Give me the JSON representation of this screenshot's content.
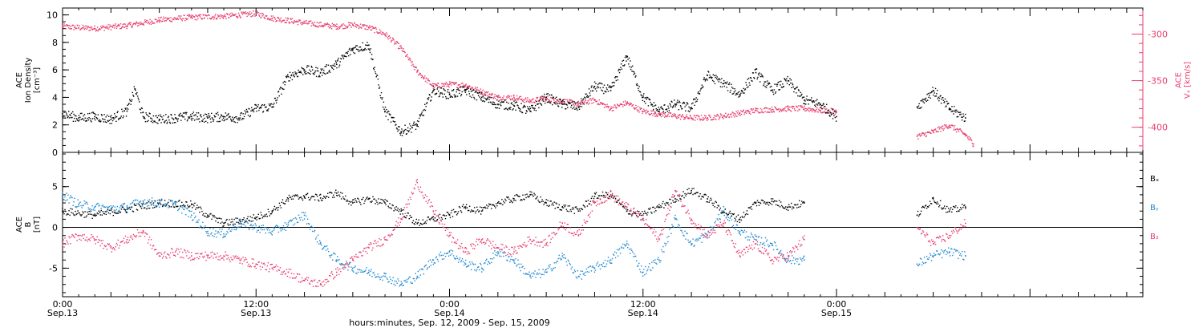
{
  "colors": {
    "black": "#000000",
    "pink": "#e83d6e",
    "blue": "#1e88d0"
  },
  "chart_data": [
    {
      "type": "scatter",
      "panel": "top",
      "ylabel_lines": [
        "ACE",
        "Ion Density",
        "[cm⁻³]"
      ],
      "ylabel_right_lines": [
        "ACE",
        "Vₓ [km/s]"
      ],
      "x_unit": "hours since Sep.13 00:00",
      "xlim": [
        0,
        67
      ],
      "ylim": [
        0,
        10.5
      ],
      "yticks": [
        0,
        2,
        4,
        6,
        8,
        10
      ],
      "y2lim": [
        -427,
        -272
      ],
      "y2ticks": [
        -300,
        -350,
        -400
      ],
      "series": [
        {
          "name": "Ion Density",
          "color": "#000000",
          "axis": "left",
          "points": [
            [
              0,
              2.8
            ],
            [
              1,
              2.5
            ],
            [
              2,
              2.6
            ],
            [
              3,
              2.4
            ],
            [
              4,
              3.0
            ],
            [
              4.5,
              4.6
            ],
            [
              5,
              2.6
            ],
            [
              6,
              2.4
            ],
            [
              7,
              2.5
            ],
            [
              8,
              2.6
            ],
            [
              9,
              2.5
            ],
            [
              10,
              2.6
            ],
            [
              11,
              2.5
            ],
            [
              12,
              3.2
            ],
            [
              13,
              3.3
            ],
            [
              14,
              5.5
            ],
            [
              15,
              6.0
            ],
            [
              16,
              5.8
            ],
            [
              17,
              6.4
            ],
            [
              18,
              7.5
            ],
            [
              19,
              7.8
            ],
            [
              20,
              3.0
            ],
            [
              21,
              1.5
            ],
            [
              22,
              2.0
            ],
            [
              23,
              4.5
            ],
            [
              24,
              4.2
            ],
            [
              25,
              4.5
            ],
            [
              26,
              4.0
            ],
            [
              27,
              3.5
            ],
            [
              28,
              3.4
            ],
            [
              29,
              3.0
            ],
            [
              30,
              4.0
            ],
            [
              31,
              3.5
            ],
            [
              32,
              3.3
            ],
            [
              33,
              4.8
            ],
            [
              34,
              4.5
            ],
            [
              35,
              7.0
            ],
            [
              36,
              4.0
            ],
            [
              37,
              3.0
            ],
            [
              38,
              3.5
            ],
            [
              39,
              3.2
            ],
            [
              40,
              5.6
            ],
            [
              41,
              5.0
            ],
            [
              42,
              4.2
            ],
            [
              43,
              5.8
            ],
            [
              44,
              4.5
            ],
            [
              45,
              5.2
            ],
            [
              46,
              3.8
            ],
            [
              47,
              3.5
            ],
            [
              48,
              2.6
            ],
            [
              53,
              3.3
            ],
            [
              54,
              4.5
            ],
            [
              55,
              3.2
            ],
            [
              56,
              2.5
            ]
          ]
        },
        {
          "name": "Vx",
          "color": "#e83d6e",
          "axis": "right",
          "points": [
            [
              0,
              -292
            ],
            [
              2,
              -294
            ],
            [
              4,
              -291
            ],
            [
              6,
              -285
            ],
            [
              8,
              -282
            ],
            [
              10,
              -281
            ],
            [
              12,
              -278
            ],
            [
              13,
              -283
            ],
            [
              15,
              -288
            ],
            [
              17,
              -292
            ],
            [
              18,
              -290
            ],
            [
              19,
              -293
            ],
            [
              20,
              -300
            ],
            [
              21,
              -315
            ],
            [
              22,
              -340
            ],
            [
              23,
              -356
            ],
            [
              24,
              -354
            ],
            [
              25,
              -355
            ],
            [
              26,
              -362
            ],
            [
              27,
              -368
            ],
            [
              28,
              -368
            ],
            [
              29,
              -372
            ],
            [
              30,
              -369
            ],
            [
              31,
              -372
            ],
            [
              32,
              -375
            ],
            [
              33,
              -371
            ],
            [
              34,
              -380
            ],
            [
              35,
              -374
            ],
            [
              36,
              -383
            ],
            [
              37,
              -386
            ],
            [
              38,
              -388
            ],
            [
              39,
              -390
            ],
            [
              40,
              -390
            ],
            [
              41,
              -388
            ],
            [
              42,
              -385
            ],
            [
              43,
              -382
            ],
            [
              44,
              -381
            ],
            [
              45,
              -380
            ],
            [
              46,
              -380
            ],
            [
              47,
              -382
            ],
            [
              48,
              -383
            ],
            [
              53,
              -410
            ],
            [
              54,
              -405
            ],
            [
              55,
              -398
            ],
            [
              56,
              -408
            ],
            [
              56.5,
              -418
            ]
          ]
        }
      ]
    },
    {
      "type": "scatter",
      "panel": "bottom",
      "ylabel_lines": [
        "ACE",
        "B",
        "[nT]"
      ],
      "x_unit": "hours since Sep.13 00:00",
      "xlim": [
        0,
        67
      ],
      "ylim": [
        -8.5,
        9.2
      ],
      "yticks": [
        -5,
        0,
        5
      ],
      "zero_line": true,
      "x_tick_labels": [
        {
          "hour": 0,
          "line1": "0:00",
          "line2": "Sep.13"
        },
        {
          "hour": 12,
          "line1": "12:00",
          "line2": "Sep.13"
        },
        {
          "hour": 24,
          "line1": "0:00",
          "line2": "Sep.14"
        },
        {
          "hour": 36,
          "line1": "12:00",
          "line2": "Sep.14"
        },
        {
          "hour": 48,
          "line1": "0:00",
          "line2": "Sep.15"
        }
      ],
      "xlabel": "hours:minutes, Sep. 12, 2009 - Sep. 15, 2009",
      "legend_position": "right",
      "series": [
        {
          "name": "Bₓ",
          "color": "#000000",
          "points": [
            [
              0,
              2.0
            ],
            [
              2,
              1.5
            ],
            [
              4,
              2.2
            ],
            [
              6,
              3.0
            ],
            [
              8,
              2.8
            ],
            [
              9,
              1.5
            ],
            [
              10,
              0.5
            ],
            [
              11,
              0.8
            ],
            [
              12,
              1.2
            ],
            [
              13,
              2.0
            ],
            [
              14,
              3.5
            ],
            [
              15,
              3.8
            ],
            [
              16,
              3.6
            ],
            [
              17,
              4.2
            ],
            [
              18,
              3.0
            ],
            [
              19,
              3.5
            ],
            [
              20,
              3.0
            ],
            [
              21,
              2.0
            ],
            [
              22,
              0.5
            ],
            [
              23,
              1.0
            ],
            [
              24,
              1.5
            ],
            [
              25,
              2.5
            ],
            [
              26,
              2.0
            ],
            [
              27,
              3.0
            ],
            [
              28,
              3.5
            ],
            [
              29,
              4.0
            ],
            [
              30,
              3.0
            ],
            [
              31,
              2.5
            ],
            [
              32,
              2.0
            ],
            [
              33,
              3.8
            ],
            [
              34,
              4.0
            ],
            [
              35,
              2.0
            ],
            [
              36,
              1.5
            ],
            [
              37,
              2.5
            ],
            [
              38,
              3.5
            ],
            [
              39,
              4.5
            ],
            [
              40,
              3.5
            ],
            [
              41,
              2.0
            ],
            [
              42,
              1.0
            ],
            [
              43,
              3.0
            ],
            [
              44,
              3.2
            ],
            [
              45,
              2.5
            ],
            [
              46,
              3.0
            ],
            [
              53,
              1.5
            ],
            [
              54,
              3.5
            ],
            [
              55,
              2.0
            ],
            [
              56,
              2.5
            ]
          ]
        },
        {
          "name": "Bᵧ",
          "color": "#1e88d0",
          "points": [
            [
              0,
              4.0
            ],
            [
              1,
              2.8
            ],
            [
              2,
              2.5
            ],
            [
              3,
              2.3
            ],
            [
              4,
              2.5
            ],
            [
              5,
              3.2
            ],
            [
              6,
              3.0
            ],
            [
              7,
              2.8
            ],
            [
              8,
              1.5
            ],
            [
              9,
              -0.5
            ],
            [
              10,
              -0.8
            ],
            [
              11,
              0.5
            ],
            [
              12,
              0.0
            ],
            [
              13,
              -0.5
            ],
            [
              14,
              0.3
            ],
            [
              15,
              1.5
            ],
            [
              16,
              -2.0
            ],
            [
              17,
              -4.0
            ],
            [
              18,
              -5.0
            ],
            [
              19,
              -5.5
            ],
            [
              20,
              -6.0
            ],
            [
              21,
              -7.0
            ],
            [
              22,
              -6.0
            ],
            [
              23,
              -4.0
            ],
            [
              24,
              -3.0
            ],
            [
              25,
              -4.5
            ],
            [
              26,
              -5.0
            ],
            [
              27,
              -3.0
            ],
            [
              28,
              -4.0
            ],
            [
              29,
              -6.0
            ],
            [
              30,
              -5.5
            ],
            [
              31,
              -3.5
            ],
            [
              32,
              -6.0
            ],
            [
              33,
              -5.0
            ],
            [
              34,
              -4.0
            ],
            [
              35,
              -2.0
            ],
            [
              36,
              -5.5
            ],
            [
              37,
              -4.0
            ],
            [
              38,
              1.0
            ],
            [
              39,
              -2.0
            ],
            [
              40,
              -1.0
            ],
            [
              41,
              2.0
            ],
            [
              42,
              -0.5
            ],
            [
              43,
              -1.5
            ],
            [
              44,
              -2.0
            ],
            [
              45,
              -4.0
            ],
            [
              46,
              -4.0
            ],
            [
              53,
              -4.5
            ],
            [
              54,
              -3.5
            ],
            [
              55,
              -3.0
            ],
            [
              56,
              -3.5
            ]
          ]
        },
        {
          "name": "B₂",
          "color": "#e83d6e",
          "points": [
            [
              0,
              -2.0
            ],
            [
              1,
              -1.0
            ],
            [
              2,
              -1.5
            ],
            [
              3,
              -2.5
            ],
            [
              4,
              -1.5
            ],
            [
              5,
              -0.5
            ],
            [
              6,
              -3.5
            ],
            [
              7,
              -3.0
            ],
            [
              8,
              -3.5
            ],
            [
              9,
              -3.5
            ],
            [
              10,
              -3.5
            ],
            [
              11,
              -4.0
            ],
            [
              12,
              -4.5
            ],
            [
              13,
              -5.0
            ],
            [
              14,
              -5.5
            ],
            [
              15,
              -6.5
            ],
            [
              16,
              -7.0
            ],
            [
              17,
              -5.5
            ],
            [
              18,
              -4.0
            ],
            [
              19,
              -2.5
            ],
            [
              20,
              -1.5
            ],
            [
              21,
              1.0
            ],
            [
              22,
              5.5
            ],
            [
              23,
              2.0
            ],
            [
              24,
              -1.0
            ],
            [
              25,
              -3.0
            ],
            [
              26,
              -1.5
            ],
            [
              27,
              -2.5
            ],
            [
              28,
              -3.0
            ],
            [
              29,
              -1.5
            ],
            [
              30,
              -2.0
            ],
            [
              31,
              0.5
            ],
            [
              32,
              -1.0
            ],
            [
              33,
              3.0
            ],
            [
              34,
              4.0
            ],
            [
              35,
              2.5
            ],
            [
              36,
              1.0
            ],
            [
              37,
              -1.5
            ],
            [
              38,
              4.5
            ],
            [
              39,
              1.0
            ],
            [
              40,
              -1.0
            ],
            [
              41,
              0.5
            ],
            [
              42,
              -3.5
            ],
            [
              43,
              -2.0
            ],
            [
              44,
              -4.0
            ],
            [
              45,
              -3.5
            ],
            [
              46,
              -1.5
            ],
            [
              53,
              0.0
            ],
            [
              54,
              -2.0
            ],
            [
              55,
              -1.0
            ],
            [
              56,
              0.5
            ]
          ]
        }
      ]
    }
  ]
}
